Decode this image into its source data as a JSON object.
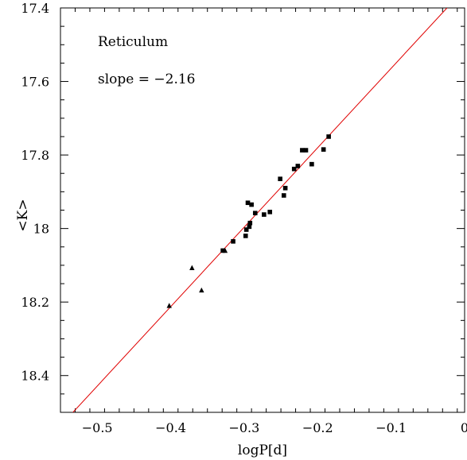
{
  "chart_data": {
    "type": "scatter",
    "xlabel": "logP[d]",
    "ylabel": "<K>",
    "xlim": [
      -0.55,
      0.0
    ],
    "ylim": [
      18.5,
      17.4
    ],
    "y_inverted": true,
    "x_ticks": [
      -0.5,
      -0.4,
      -0.3,
      -0.2,
      -0.1,
      0
    ],
    "x_tick_labels": [
      "−0.5",
      "−0.4",
      "−0.3",
      "−0.2",
      "−0.1",
      "0"
    ],
    "y_ticks": [
      17.4,
      17.6,
      17.8,
      18.0,
      18.2,
      18.4
    ],
    "y_tick_labels": [
      "17.4",
      "17.6",
      "17.8",
      "18",
      "18.2",
      "18.4"
    ],
    "grid": false,
    "annotations": [
      "Reticulum",
      "slope = −2.16"
    ],
    "fit_line": {
      "color": "#e00000",
      "slope": -2.16,
      "points": [
        [
          -0.533,
          18.5
        ],
        [
          -0.024,
          17.4
        ]
      ]
    },
    "series": [
      {
        "marker": "square",
        "color": "#000000",
        "points": [
          [
            -0.185,
            17.75
          ],
          [
            -0.192,
            17.785
          ],
          [
            -0.208,
            17.825
          ],
          [
            -0.216,
            17.787
          ],
          [
            -0.221,
            17.787
          ],
          [
            -0.227,
            17.83
          ],
          [
            -0.232,
            17.838
          ],
          [
            -0.244,
            17.89
          ],
          [
            -0.246,
            17.91
          ],
          [
            -0.251,
            17.865
          ],
          [
            -0.265,
            17.955
          ],
          [
            -0.273,
            17.962
          ],
          [
            -0.285,
            17.958
          ],
          [
            -0.29,
            17.935
          ],
          [
            -0.292,
            17.985
          ],
          [
            -0.293,
            17.995
          ],
          [
            -0.295,
            17.93
          ],
          [
            -0.297,
            18.003
          ],
          [
            -0.298,
            18.02
          ],
          [
            -0.315,
            18.035
          ],
          [
            -0.329,
            18.06
          ]
        ]
      },
      {
        "marker": "triangle",
        "color": "#000000",
        "points": [
          [
            -0.326,
            18.06
          ],
          [
            -0.358,
            18.168
          ],
          [
            -0.371,
            18.107
          ],
          [
            -0.402,
            18.21
          ]
        ]
      }
    ]
  }
}
